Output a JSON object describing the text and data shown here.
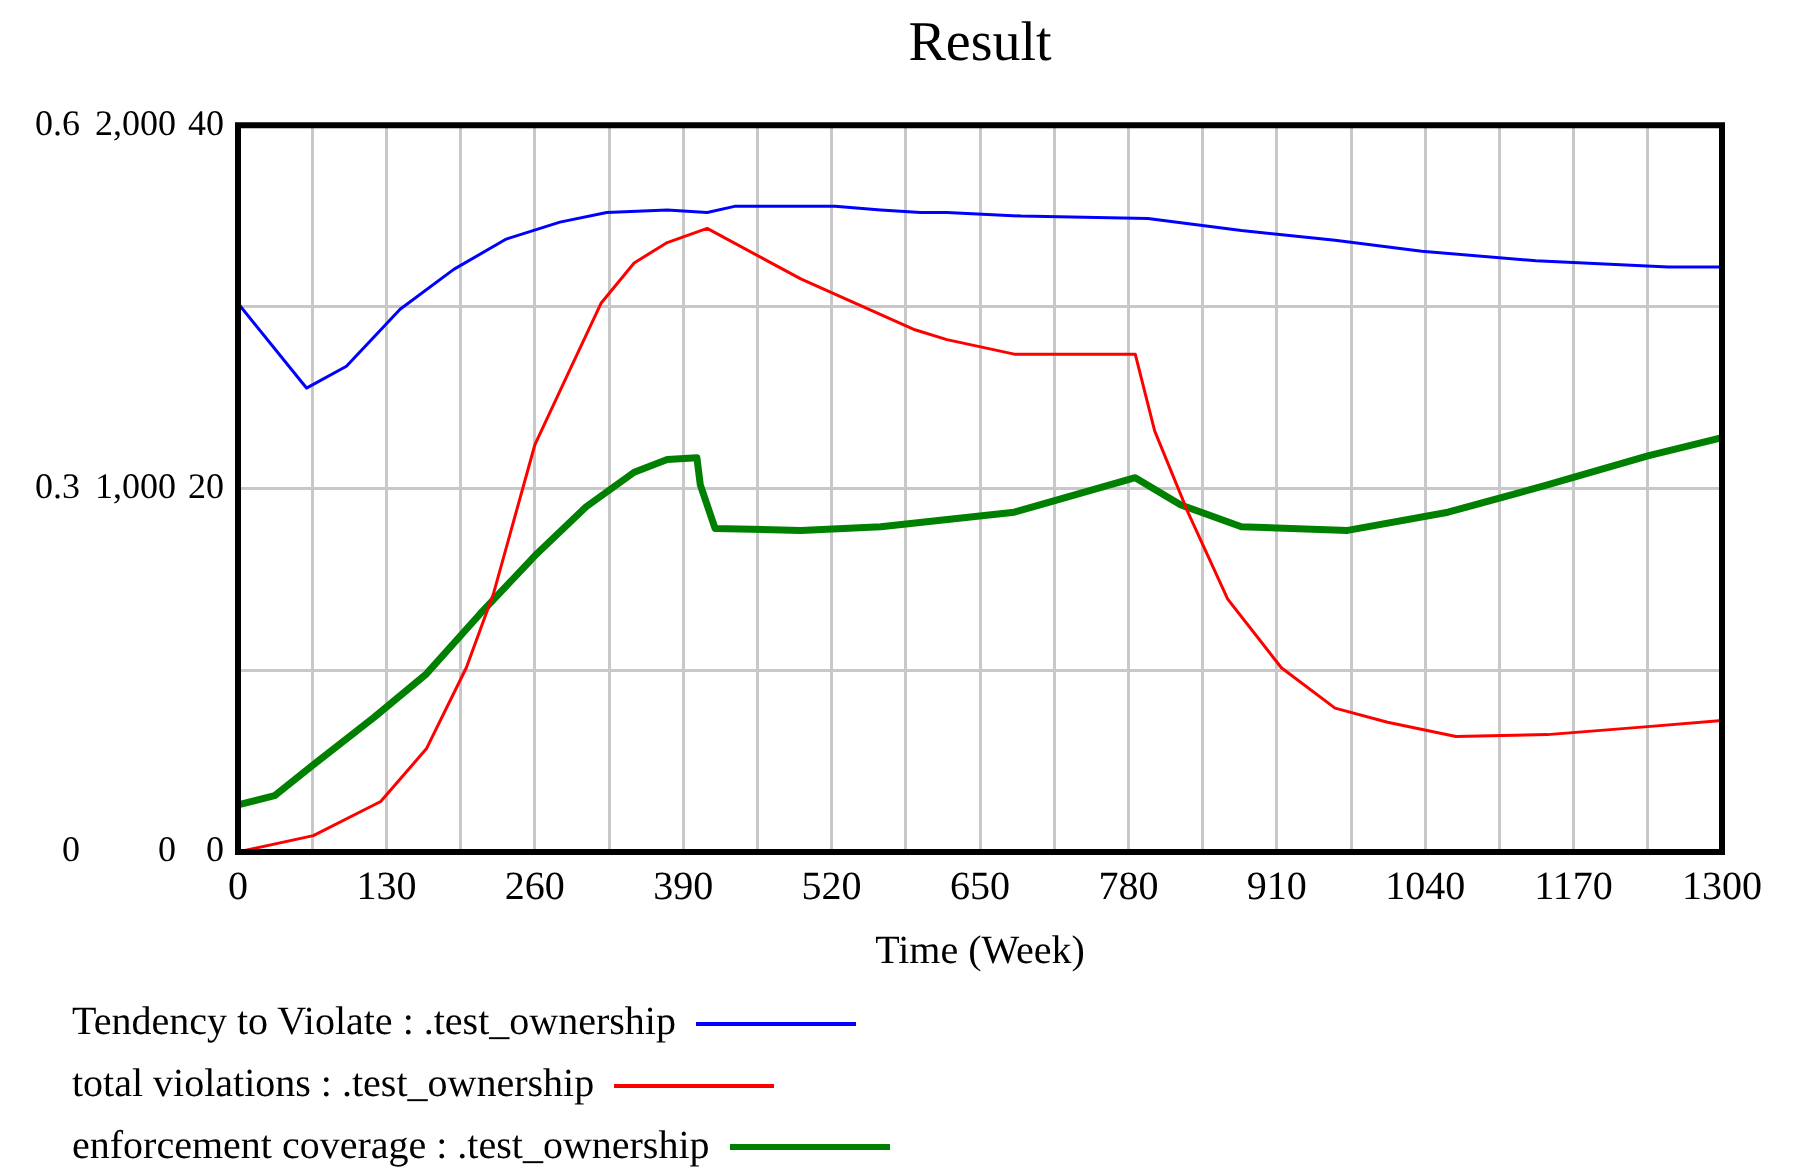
{
  "chart_data": {
    "type": "line",
    "title": "Result",
    "xlabel": "Time (Week)",
    "xlim": [
      0,
      1300
    ],
    "xticks": [
      0,
      {
        "value": 65,
        "label": null
      },
      130,
      {
        "value": 195,
        "label": null
      },
      260,
      {
        "value": 325,
        "label": null
      },
      390,
      {
        "value": 455,
        "label": null
      },
      520,
      {
        "value": 585,
        "label": null
      },
      650,
      {
        "value": 715,
        "label": null
      },
      780,
      {
        "value": 845,
        "label": null
      },
      910,
      {
        "value": 975,
        "label": null
      },
      1040,
      {
        "value": 1105,
        "label": null
      },
      1170,
      {
        "value": 1235,
        "label": null
      },
      1300
    ],
    "ylim": [
      0,
      0.6
    ],
    "yticks": [
      0,
      {
        "value": 0.15,
        "label": null
      },
      0.3,
      {
        "value": 0.45,
        "label": null
      },
      0.6
    ],
    "y2lim": [
      0,
      2000
    ],
    "y2ticks": [
      {
        "value": 0,
        "label": "0"
      },
      {
        "value": 1000,
        "label": "1,000"
      },
      {
        "value": 2000,
        "label": "2,000"
      }
    ],
    "y3lim": [
      0,
      40
    ],
    "y3ticks": [
      0,
      20,
      40
    ],
    "grid": true,
    "legend": "bottom",
    "series": [
      {
        "name": "Tendency to Violate : .test_ownership",
        "color": "#0000ff",
        "x": [
          0,
          60,
          95,
          142,
          189,
          235,
          282,
          323,
          376,
          411,
          435,
          523,
          563,
          598,
          621,
          686,
          797,
          879,
          961,
          1037,
          1137,
          1253,
          1300
        ],
        "values": [
          0.453,
          0.383,
          0.401,
          0.448,
          0.481,
          0.506,
          0.52,
          0.528,
          0.53,
          0.528,
          0.533,
          0.533,
          0.53,
          0.528,
          0.528,
          0.525,
          0.523,
          0.513,
          0.505,
          0.496,
          0.488,
          0.483,
          0.483
        ]
      },
      {
        "name": "total violations : .test_ownership",
        "color": "#ff0000",
        "axis": "y2",
        "x": [
          0,
          66,
          125,
          165,
          200,
          224,
          260,
          288,
          318,
          347,
          376,
          411,
          493,
          593,
          621,
          680,
          786,
          803,
          832,
          867,
          914,
          961,
          1007,
          1067,
          1147,
          1235,
          1300
        ],
        "values": [
          0,
          45,
          139,
          284,
          507,
          713,
          1120,
          1309,
          1510,
          1621,
          1677,
          1716,
          1577,
          1437,
          1410,
          1370,
          1370,
          1159,
          936,
          696,
          507,
          396,
          357,
          318,
          323,
          345,
          362
        ]
      },
      {
        "name": "enforcement coverage : .test_ownership",
        "color": "#008000",
        "axis": "y3",
        "x": [
          0,
          32,
          66,
          119,
          165,
          212,
          260,
          305,
          347,
          376,
          402,
          405,
          418,
          493,
          563,
          680,
          786,
          826,
          879,
          972,
          1060,
          1147,
          1235,
          1300
        ],
        "values": [
          2.6,
          3.1,
          4.8,
          7.4,
          9.8,
          13.1,
          16.3,
          19,
          20.9,
          21.6,
          21.7,
          20.2,
          17.8,
          17.7,
          17.9,
          18.7,
          20.6,
          19.1,
          17.9,
          17.7,
          18.7,
          20.2,
          21.8,
          22.8
        ]
      }
    ]
  }
}
